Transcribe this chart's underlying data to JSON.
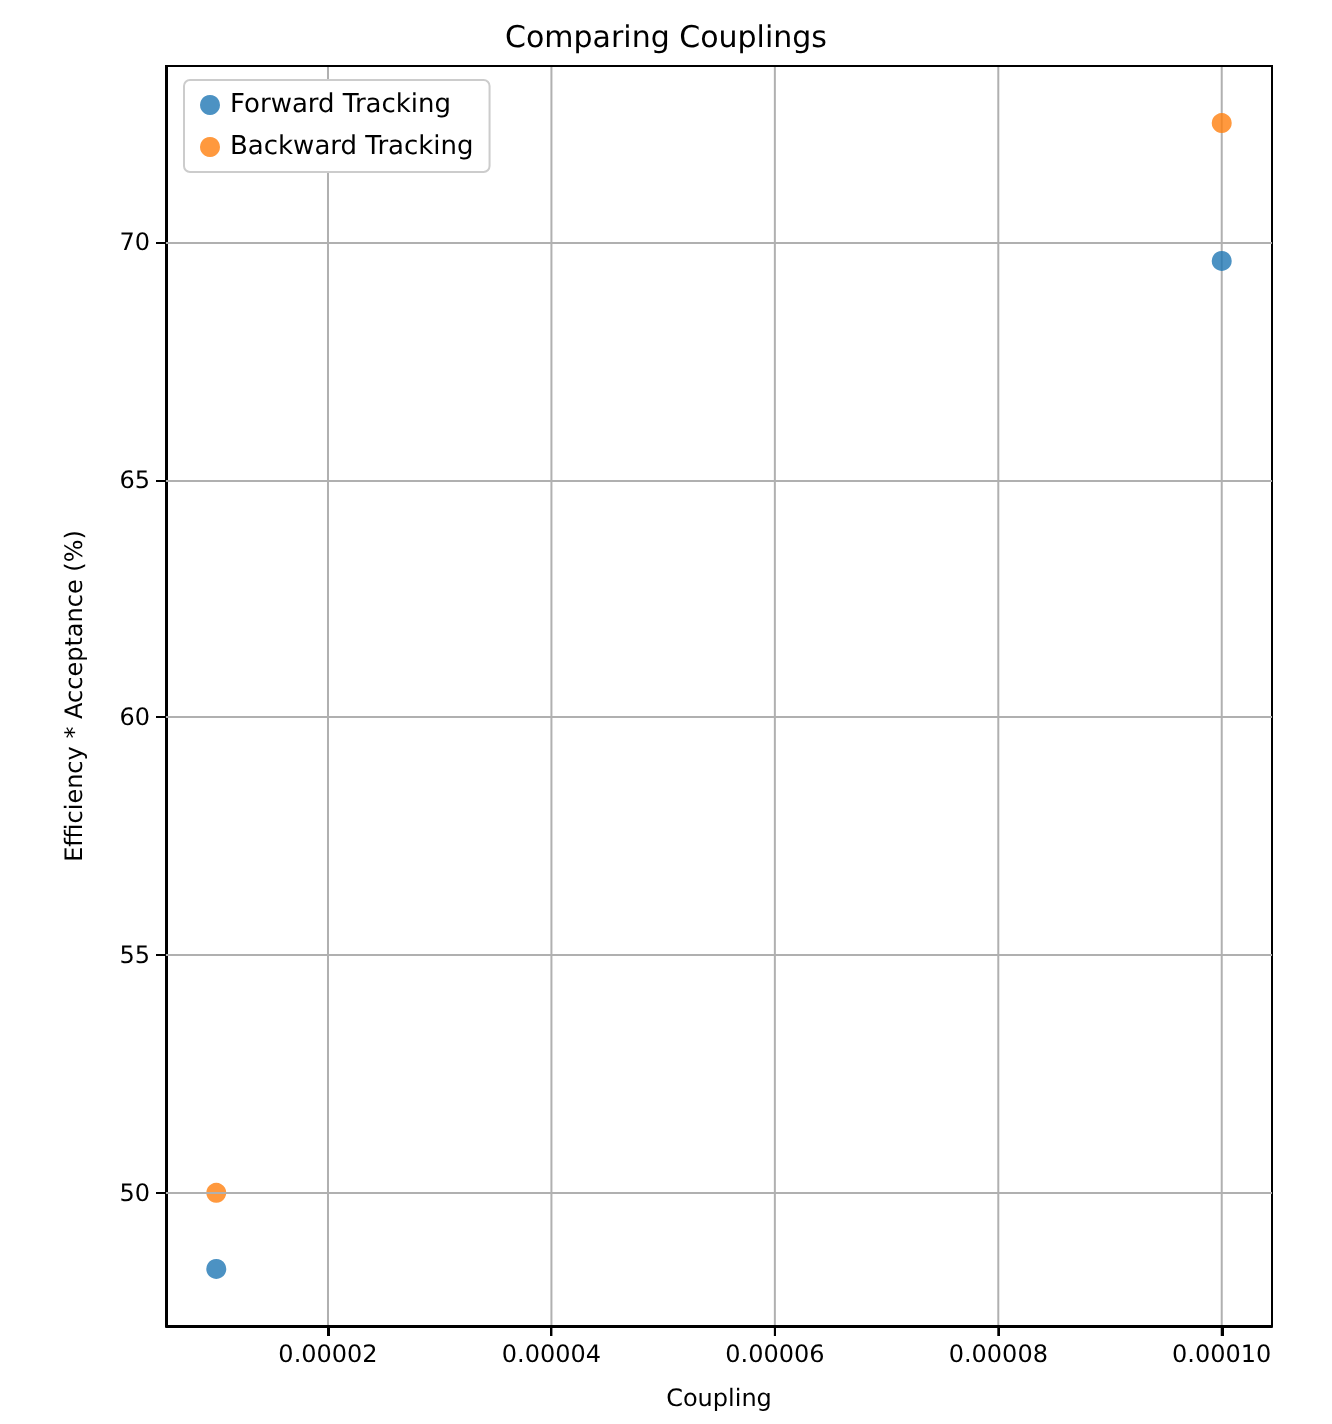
{
  "chart_data": {
    "type": "scatter",
    "title": "Comparing Couplings",
    "xlabel": "Coupling",
    "ylabel": "Efficiency * Acceptance (%)",
    "x": [
      1e-05,
      0.0001
    ],
    "series": [
      {
        "name": "Forward Tracking",
        "color": "#1f77b4",
        "values": [
          48.4,
          69.6
        ]
      },
      {
        "name": "Backward Tracking",
        "color": "#ff7f0e",
        "values": [
          50.0,
          72.5
        ]
      }
    ],
    "xlim": [
      5.5e-06,
      0.0001045
    ],
    "xticks": [
      {
        "value": 2e-05,
        "label": "0.00002"
      },
      {
        "value": 4e-05,
        "label": "0.00004"
      },
      {
        "value": 6e-05,
        "label": "0.00006"
      },
      {
        "value": 8e-05,
        "label": "0.00008"
      },
      {
        "value": 0.0001,
        "label": "0.00010"
      }
    ],
    "ylim": [
      47.2,
      73.7
    ],
    "yticks": [
      50,
      55,
      60,
      65,
      70
    ],
    "grid": true,
    "legend": "top left",
    "marker": "circle"
  }
}
